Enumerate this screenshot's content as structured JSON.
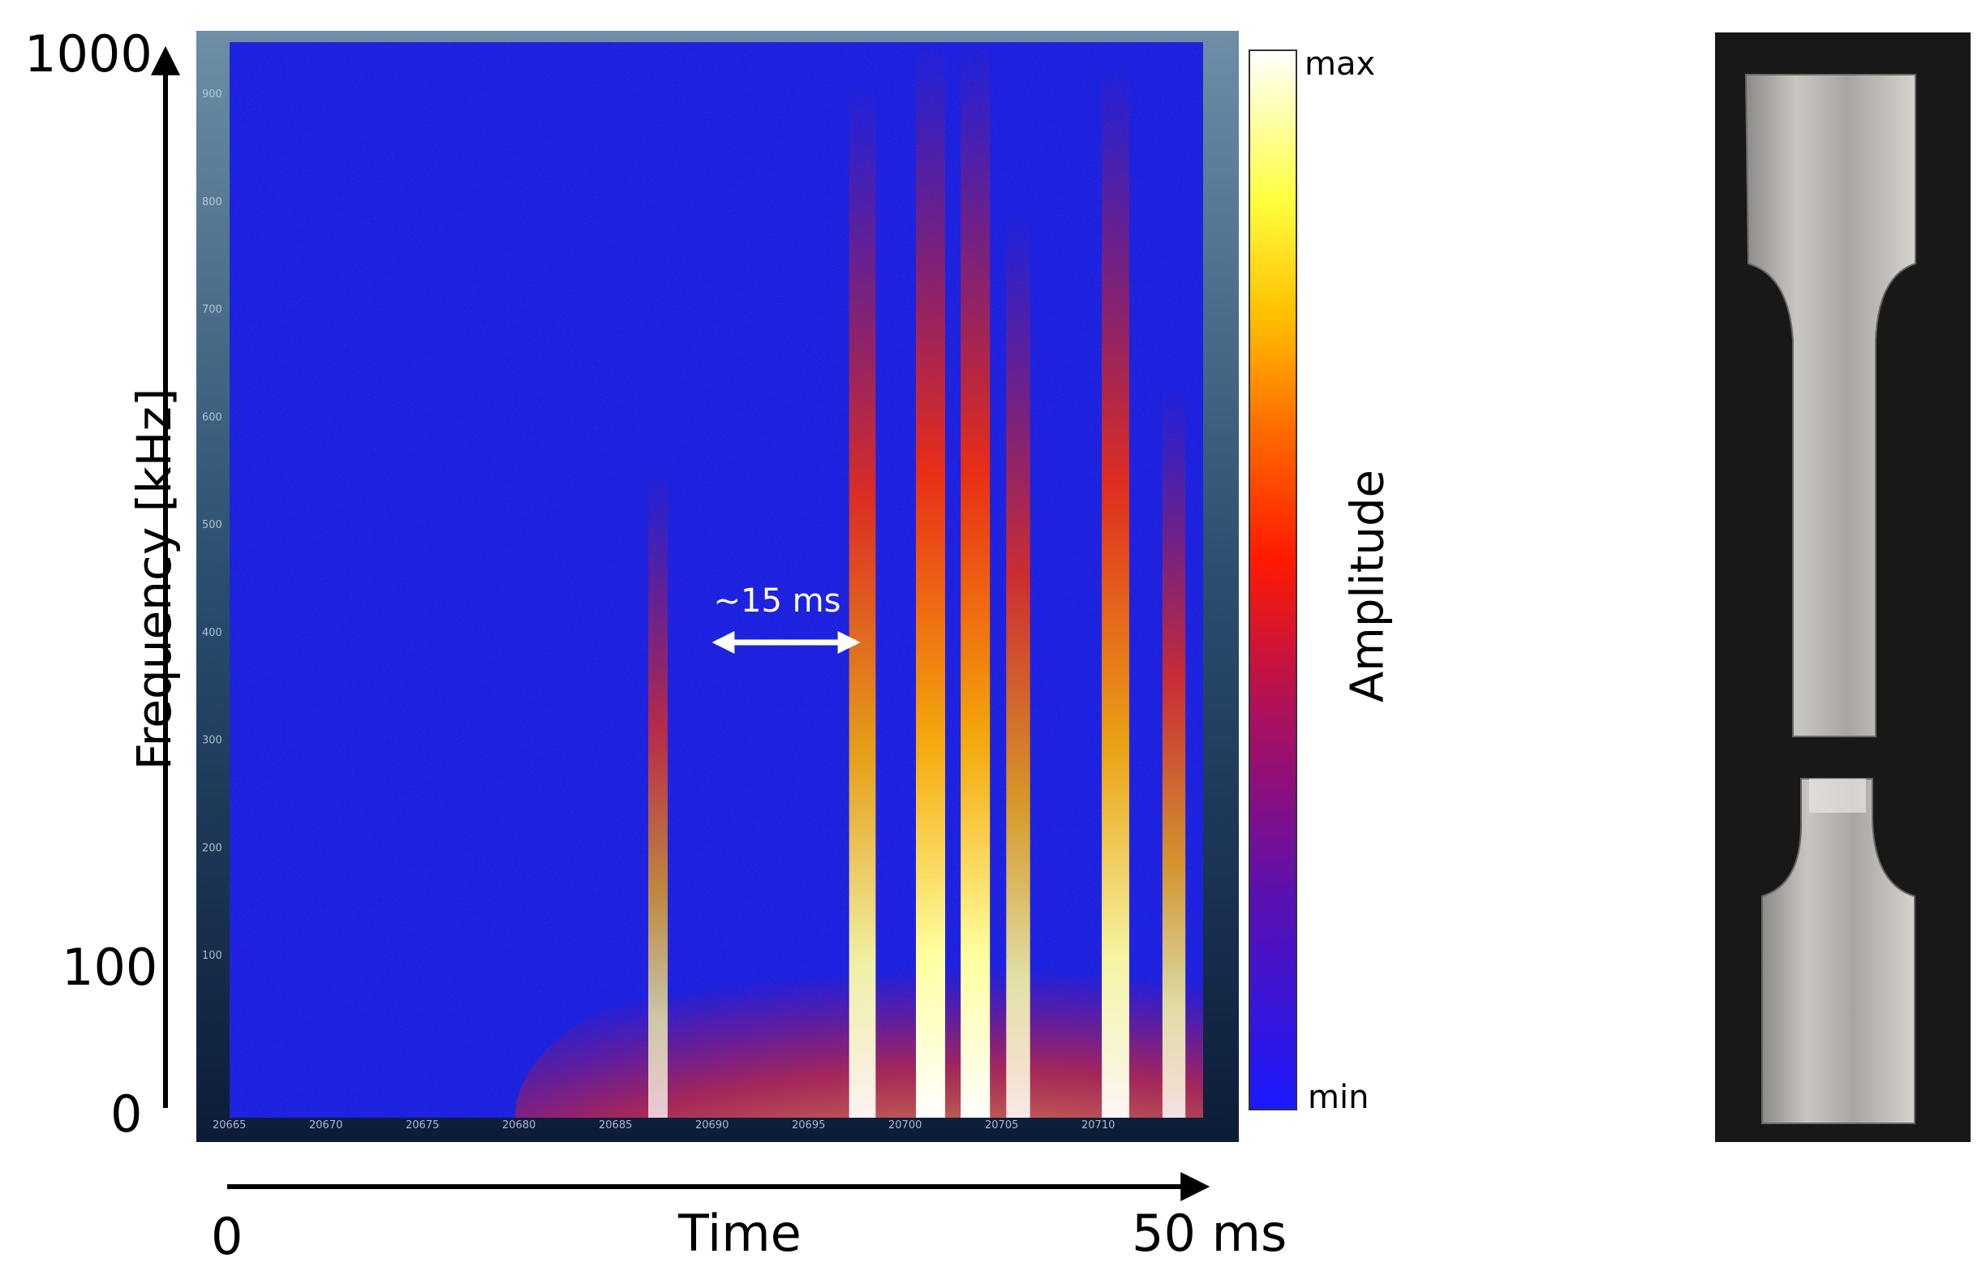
{
  "chart_data": {
    "type": "heatmap",
    "title": "",
    "xlabel": "Time",
    "ylabel": "Frequency [kHz]",
    "x_axis_ends": {
      "start": "0",
      "end": "50 ms"
    },
    "y_ticks": [
      "0",
      "100",
      "1000"
    ],
    "ylim": [
      0,
      1000
    ],
    "colorbar": {
      "label": "Amplitude",
      "max_label": "max",
      "min_label": "min",
      "colors": [
        "#1a1aff",
        "#5a10b0",
        "#b0105a",
        "#ff1a00",
        "#ff6a00",
        "#ffc000",
        "#ffff40",
        "#ffffff"
      ]
    },
    "inner_x_ticks": [
      "20665",
      "20670",
      "20675",
      "20680",
      "20685",
      "20690",
      "20695",
      "20700",
      "20705",
      "20710"
    ],
    "inner_y_ticks": [
      "100",
      "200",
      "300",
      "400",
      "500",
      "600",
      "700",
      "800",
      "900"
    ],
    "annotation": "~15 ms",
    "background_color": "#1a22e0",
    "bursts": [
      {
        "time_ms": 22,
        "max_freq_khz": 340,
        "intensity": 0.45
      },
      {
        "time_ms": 32.5,
        "max_freq_khz": 900,
        "intensity": 0.85
      },
      {
        "time_ms": 36,
        "max_freq_khz": 1000,
        "intensity": 1.0
      },
      {
        "time_ms": 38.3,
        "max_freq_khz": 1000,
        "intensity": 1.0
      },
      {
        "time_ms": 40.5,
        "max_freq_khz": 650,
        "intensity": 0.7
      },
      {
        "time_ms": 45.5,
        "max_freq_khz": 950,
        "intensity": 0.9
      },
      {
        "time_ms": 48.5,
        "max_freq_khz": 420,
        "intensity": 0.65
      }
    ]
  },
  "photo": {
    "name": "fractured dog-bone tensile specimen",
    "background": "#181818",
    "metal": "#b8b4b0"
  }
}
